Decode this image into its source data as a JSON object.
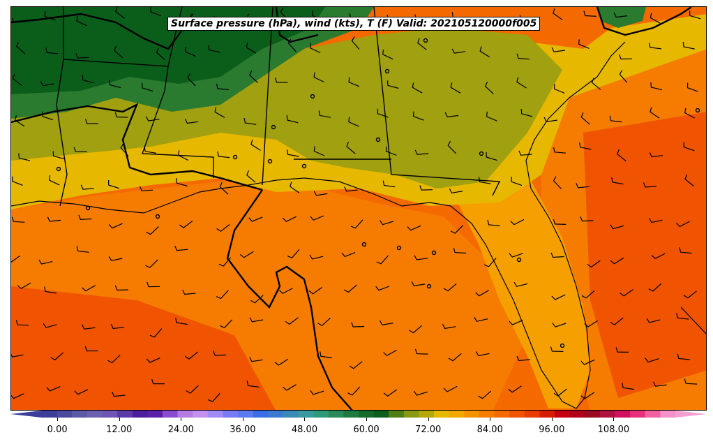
{
  "title": "Surface pressure (hPa), wind (kts), T (F) Valid: 202105120000f005",
  "colorbar": {
    "min": -3,
    "max": 120,
    "step": 3,
    "tick_labels": [
      "0.00",
      "12.00",
      "24.00",
      "36.00",
      "48.00",
      "60.00",
      "72.00",
      "84.00",
      "96.00",
      "108.00"
    ],
    "colors": [
      "#3b3f9a",
      "#4a4a9e",
      "#5a5aa8",
      "#6a62b0",
      "#6f56b4",
      "#5d3aa8",
      "#4b1e9e",
      "#5a1ea8",
      "#8a4bd0",
      "#b47be0",
      "#c490f0",
      "#a08af5",
      "#7a7af5",
      "#5a7af0",
      "#3a6ee6",
      "#3a7ad0",
      "#3a8ab8",
      "#3a9aa0",
      "#2f9a7a",
      "#2a8a5a",
      "#1f7a40",
      "#146a2a",
      "#0a5e1a",
      "#4e7e14",
      "#8a9a10",
      "#b5a80a",
      "#e6b800",
      "#f0a800",
      "#f59200",
      "#f57c00",
      "#f56a00",
      "#f05400",
      "#e83c00",
      "#d81c00",
      "#c40010",
      "#b0001a",
      "#9a0a20",
      "#b01040",
      "#d01060",
      "#e8307a",
      "#f060a0",
      "#f590c8"
    ],
    "under_color": "#3b3f9a",
    "over_color": "#f5a0d0"
  },
  "map": {
    "fields": {
      "temperature_shading": "T (F)",
      "wind_barbs": "kts",
      "isobars": "hPa"
    }
  }
}
